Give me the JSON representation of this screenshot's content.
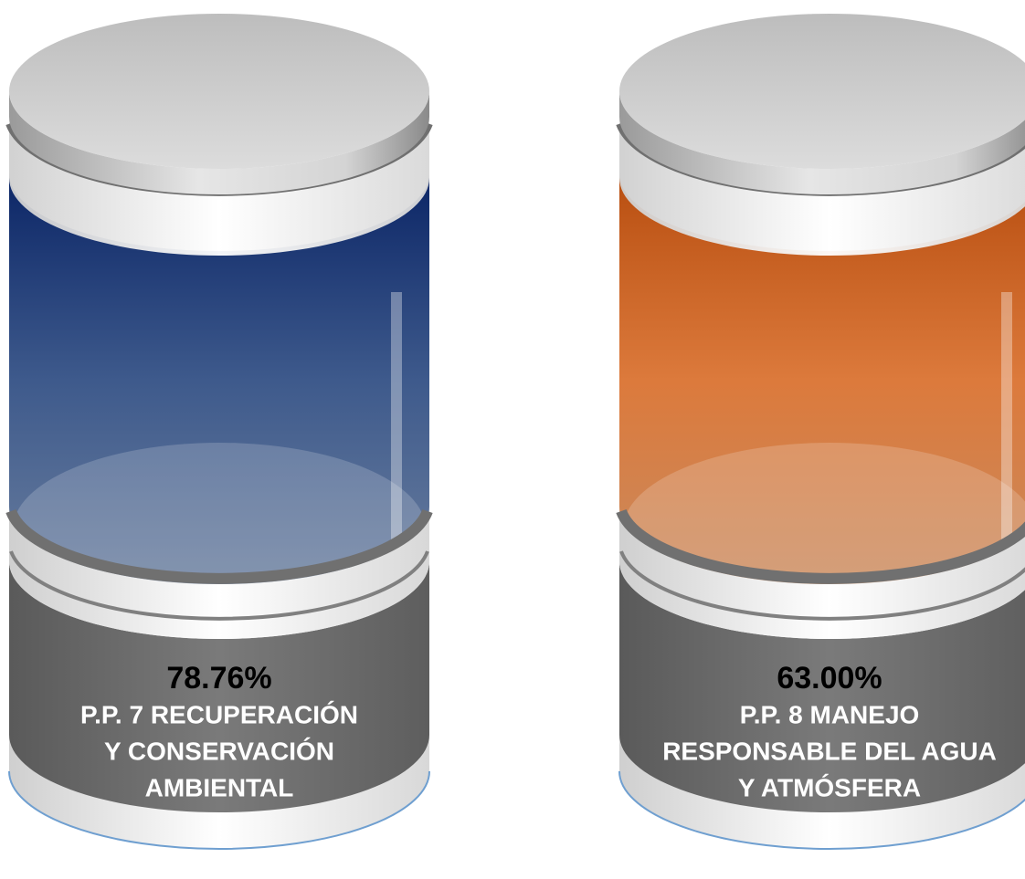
{
  "gauges": [
    {
      "value": "78.76%",
      "label": [
        "P.P. 7 RECUPERACIÓN",
        "Y CONSERVACIÓN",
        "AMBIENTAL"
      ]
    },
    {
      "value": "63.00%",
      "label": [
        "P.P. 8 MANEJO",
        "RESPONSABLE DEL AGUA",
        "Y ATMÓSFERA"
      ]
    }
  ]
}
